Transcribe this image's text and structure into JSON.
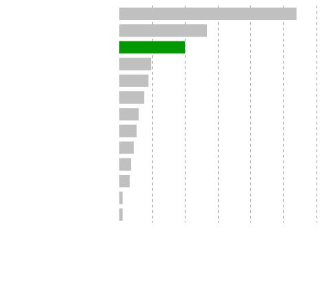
{
  "chart_data": {
    "type": "bar",
    "orientation": "horizontal",
    "categories": [
      "",
      "",
      "",
      "",
      "",
      "",
      "",
      "",
      "",
      "",
      "",
      "",
      ""
    ],
    "values": [
      5.4,
      2.67,
      2.0,
      0.97,
      0.89,
      0.76,
      0.59,
      0.53,
      0.44,
      0.36,
      0.32,
      0.1,
      0.1
    ],
    "highlight_index": 2,
    "xlim": [
      0,
      6
    ],
    "grid": true,
    "grid_style": "dashed",
    "bar_color": "#c0c0c0",
    "highlight_color": "#009900",
    "title": "",
    "xlabel": "",
    "ylabel": ""
  }
}
